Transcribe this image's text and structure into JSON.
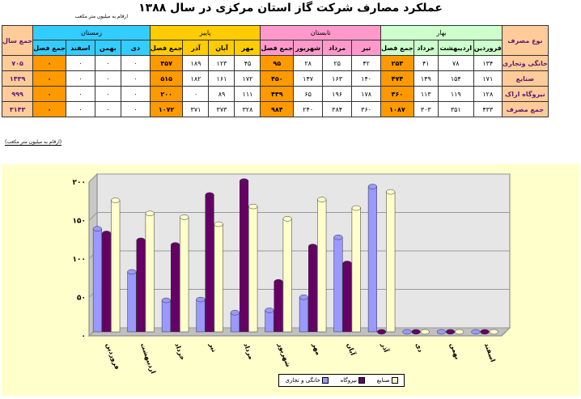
{
  "title": "عملکرد مصارف شرکت گاز استان مرکزی در سال ۱۳۸۸",
  "unit_note_top": "ارقام به میلیون متر مکعب",
  "unit_note_bottom": "(ارقام به میلیون متر مکعب)",
  "table": {
    "type_header": "نوع مصرف",
    "year_total_header": "جمع سال",
    "seasons": [
      {
        "name": "بهار",
        "color": "#ccffcc",
        "months": [
          "فروردین",
          "اردیبهشت",
          "خرداد"
        ]
      },
      {
        "name": "تابستان",
        "color": "#ff99cc",
        "months": [
          "تیر",
          "مرداد",
          "شهریور"
        ]
      },
      {
        "name": "پاییز",
        "color": "#ffcc00",
        "months": [
          "مهر",
          "آبان",
          "آذر"
        ]
      },
      {
        "name": "زمستان",
        "color": "#33ccff",
        "months": [
          "دی",
          "بهمن",
          "اسفند"
        ]
      }
    ],
    "season_total_label": "جمع فصل",
    "rows": [
      {
        "label": "خانگی وتجاری",
        "cells": [
          "۱۳۴",
          "۷۸",
          "۴۱",
          "۲۵۳",
          "۴۲",
          "۲۵",
          "۲۸",
          "۹۵",
          "۴۵",
          "۱۲۳",
          "۱۸۹",
          "۳۵۷",
          "۰",
          "۰",
          "۰",
          "۰"
        ],
        "year": "۷۰۵"
      },
      {
        "label": "صنایع",
        "cells": [
          "۱۷۱",
          "۱۵۴",
          "۱۴۹",
          "۴۷۴",
          "۱۴۰",
          "۱۶۳",
          "۱۴۷",
          "۴۵۰",
          "۱۷۲",
          "۱۶۱",
          "۱۸۲",
          "۵۱۵",
          "۰",
          "۰",
          "۰",
          "۰"
        ],
        "year": "۱۴۳۹"
      },
      {
        "label": "نیروگاه اراک",
        "cells": [
          "۱۲۸",
          "۱۱۹",
          "۱۱۳",
          "۳۶۰",
          "۱۷۸",
          "۱۹۶",
          "۶۵",
          "۴۳۹",
          "۱۱۱",
          "۸۹",
          "۰",
          "۲۰۰",
          "۰",
          "۰",
          "۰",
          "۰"
        ],
        "year": "۹۹۹"
      },
      {
        "label": "جمع مصرف",
        "cells": [
          "۴۳۳",
          "۳۵۱",
          "۳۰۳",
          "۱۰۸۷",
          "۳۶۰",
          "۳۸۴",
          "۲۴۰",
          "۹۸۴",
          "۳۲۸",
          "۳۷۳",
          "۳۷۱",
          "۱۰۷۲",
          "۰",
          "۰",
          "۰",
          "۰"
        ],
        "year": "۳۱۴۳"
      }
    ]
  },
  "chart_data": {
    "type": "bar",
    "categories": [
      "فروردین",
      "اردیبهشت",
      "خرداد",
      "تیر",
      "مرداد",
      "شهریور",
      "مهر",
      "آبان",
      "آذر",
      "دی",
      "بهمن",
      "اسفند"
    ],
    "series": [
      {
        "name": "خانگی و تجاری",
        "color": "#9999ff",
        "values": [
          134,
          78,
          41,
          42,
          25,
          28,
          45,
          123,
          189,
          0,
          0,
          0
        ]
      },
      {
        "name": "صنایع",
        "color": "#ffffcc",
        "values": [
          171,
          154,
          149,
          140,
          163,
          147,
          172,
          161,
          182,
          0,
          0,
          0
        ]
      },
      {
        "name": "نیروگاه",
        "color": "#660066",
        "values": [
          128,
          119,
          113,
          178,
          196,
          65,
          111,
          89,
          0,
          0,
          0,
          0
        ]
      }
    ],
    "ylim": [
      0,
      200
    ],
    "yticks": [
      "۰",
      "۵۰",
      "۱۰۰",
      "۱۵۰",
      "۲۰۰"
    ],
    "grid": true,
    "legend": "bottom"
  }
}
